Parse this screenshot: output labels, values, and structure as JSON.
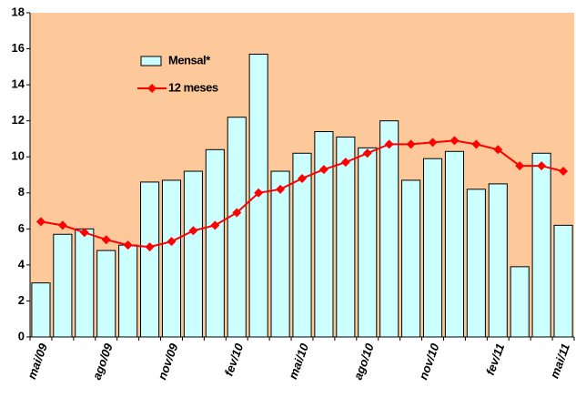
{
  "chart_data": {
    "type": "bar",
    "categories": [
      "mai/09",
      null,
      null,
      "ago/09",
      null,
      null,
      "nov/09",
      null,
      null,
      "fev/10",
      null,
      null,
      "mai/10",
      null,
      null,
      "ago/10",
      null,
      null,
      "nov/10",
      null,
      null,
      "fev/11",
      null,
      null,
      "mai/11"
    ],
    "series": [
      {
        "name": "Mensal*",
        "type": "bar",
        "color": "#ccffff",
        "values": [
          3.0,
          5.7,
          6.0,
          4.8,
          5.1,
          8.6,
          8.7,
          9.2,
          10.4,
          12.2,
          15.7,
          9.2,
          10.2,
          11.4,
          11.1,
          10.5,
          12.0,
          8.7,
          9.9,
          10.3,
          8.2,
          8.5,
          3.9,
          10.2,
          6.2
        ]
      },
      {
        "name": "12 meses",
        "type": "line",
        "color": "#ff0000",
        "values": [
          6.4,
          6.2,
          5.8,
          5.4,
          5.1,
          5.0,
          5.3,
          5.9,
          6.2,
          6.9,
          8.0,
          8.2,
          8.8,
          9.3,
          9.7,
          10.2,
          10.7,
          10.7,
          10.8,
          10.9,
          10.7,
          10.4,
          9.5,
          9.5,
          9.2
        ]
      }
    ],
    "ylim": [
      0,
      18
    ],
    "yticks": [
      0,
      2,
      4,
      6,
      8,
      10,
      12,
      14,
      16,
      18
    ],
    "plot_background": "#fdc99b",
    "grid": false
  }
}
